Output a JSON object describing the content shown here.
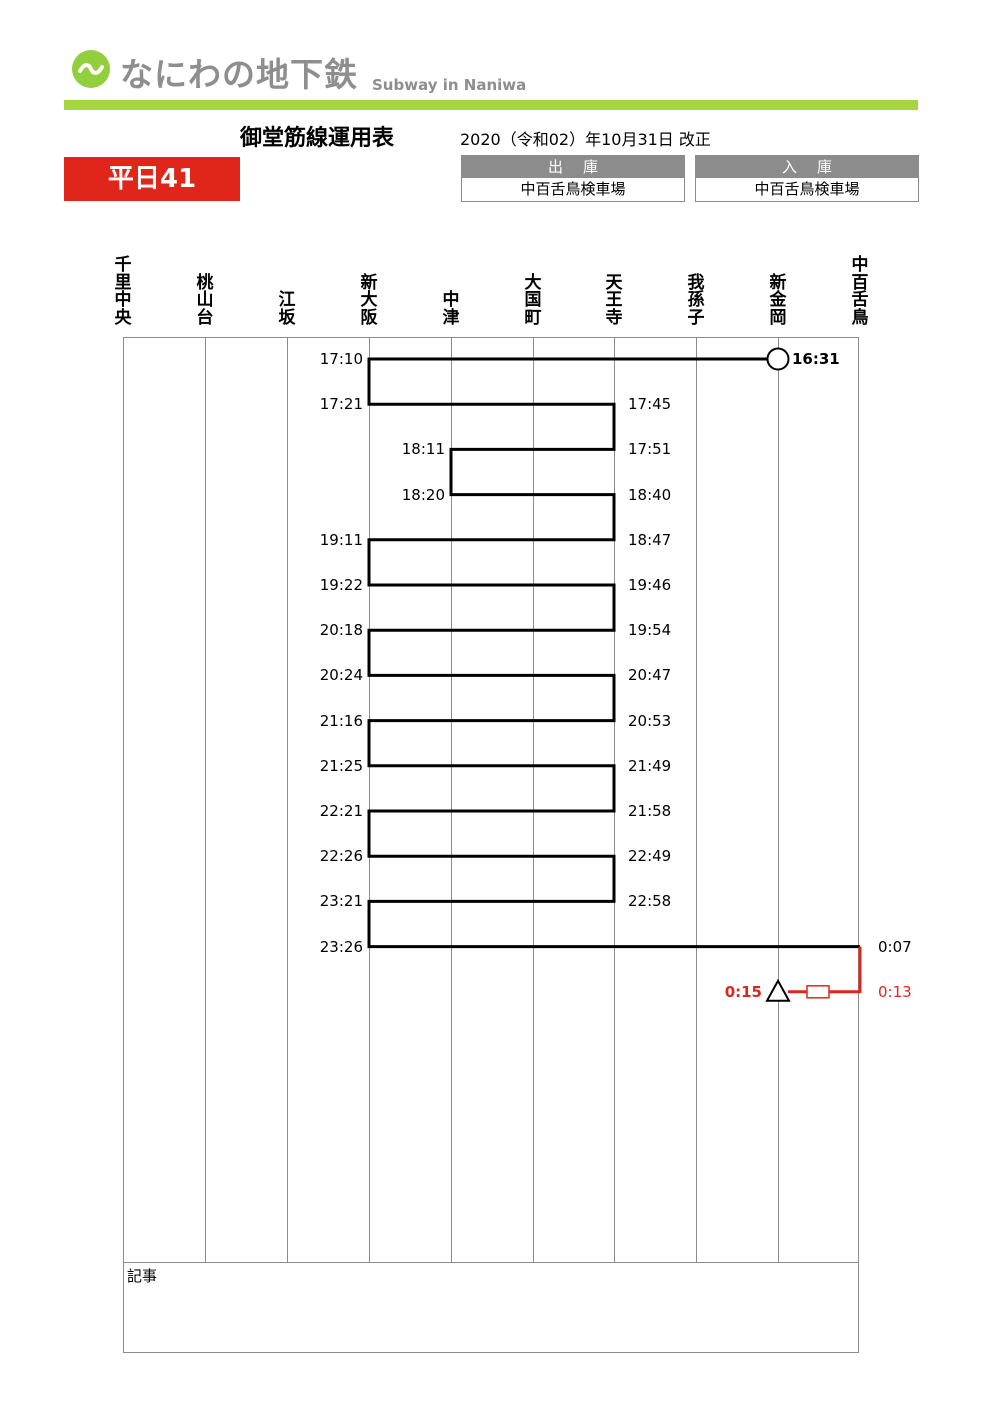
{
  "header": {
    "brand_name": "なにわの地下鉄",
    "brand_sub": "Subway in Naniwa",
    "title": "御堂筋線運用表",
    "revision": "2020（令和02）年10月31日 改正",
    "badge": "平日41",
    "depot_out": {
      "label": "出庫",
      "value": "中百舌鳥検車場"
    },
    "depot_in": {
      "label": "入庫",
      "value": "中百舌鳥検車場"
    }
  },
  "stations": [
    "千里中央",
    "桃山台",
    "江坂",
    "新大阪",
    "中津",
    "大国町",
    "天王寺",
    "我孫子",
    "新金岡",
    "中百舌鳥"
  ],
  "notes_label": "記事",
  "schedule": {
    "start": {
      "time": "16:31",
      "station": "新金岡",
      "symbol": "circle"
    },
    "rows": [
      {
        "left": "17:10",
        "right": ""
      },
      {
        "left": "17:21",
        "right": "17:45"
      },
      {
        "left": "18:11",
        "right": "17:51"
      },
      {
        "left": "18:20",
        "right": "18:40"
      },
      {
        "left": "19:11",
        "right": "18:47"
      },
      {
        "left": "19:22",
        "right": "19:46"
      },
      {
        "left": "20:18",
        "right": "19:54"
      },
      {
        "left": "20:24",
        "right": "20:47"
      },
      {
        "left": "21:16",
        "right": "20:53"
      },
      {
        "left": "21:25",
        "right": "21:49"
      },
      {
        "left": "22:21",
        "right": "21:58"
      },
      {
        "left": "22:26",
        "right": "22:49"
      },
      {
        "left": "23:21",
        "right": "22:58"
      },
      {
        "left": "23:26",
        "right": "0:07"
      }
    ],
    "end": {
      "arrive_terminal": "0:13",
      "arrive_depot": "0:15",
      "symbol": "triangle"
    }
  },
  "colors": {
    "brand_green": "#a5d63e",
    "badge_red": "#e0261b",
    "grey": "#8c8c8c",
    "route_red": "#e0261b"
  }
}
